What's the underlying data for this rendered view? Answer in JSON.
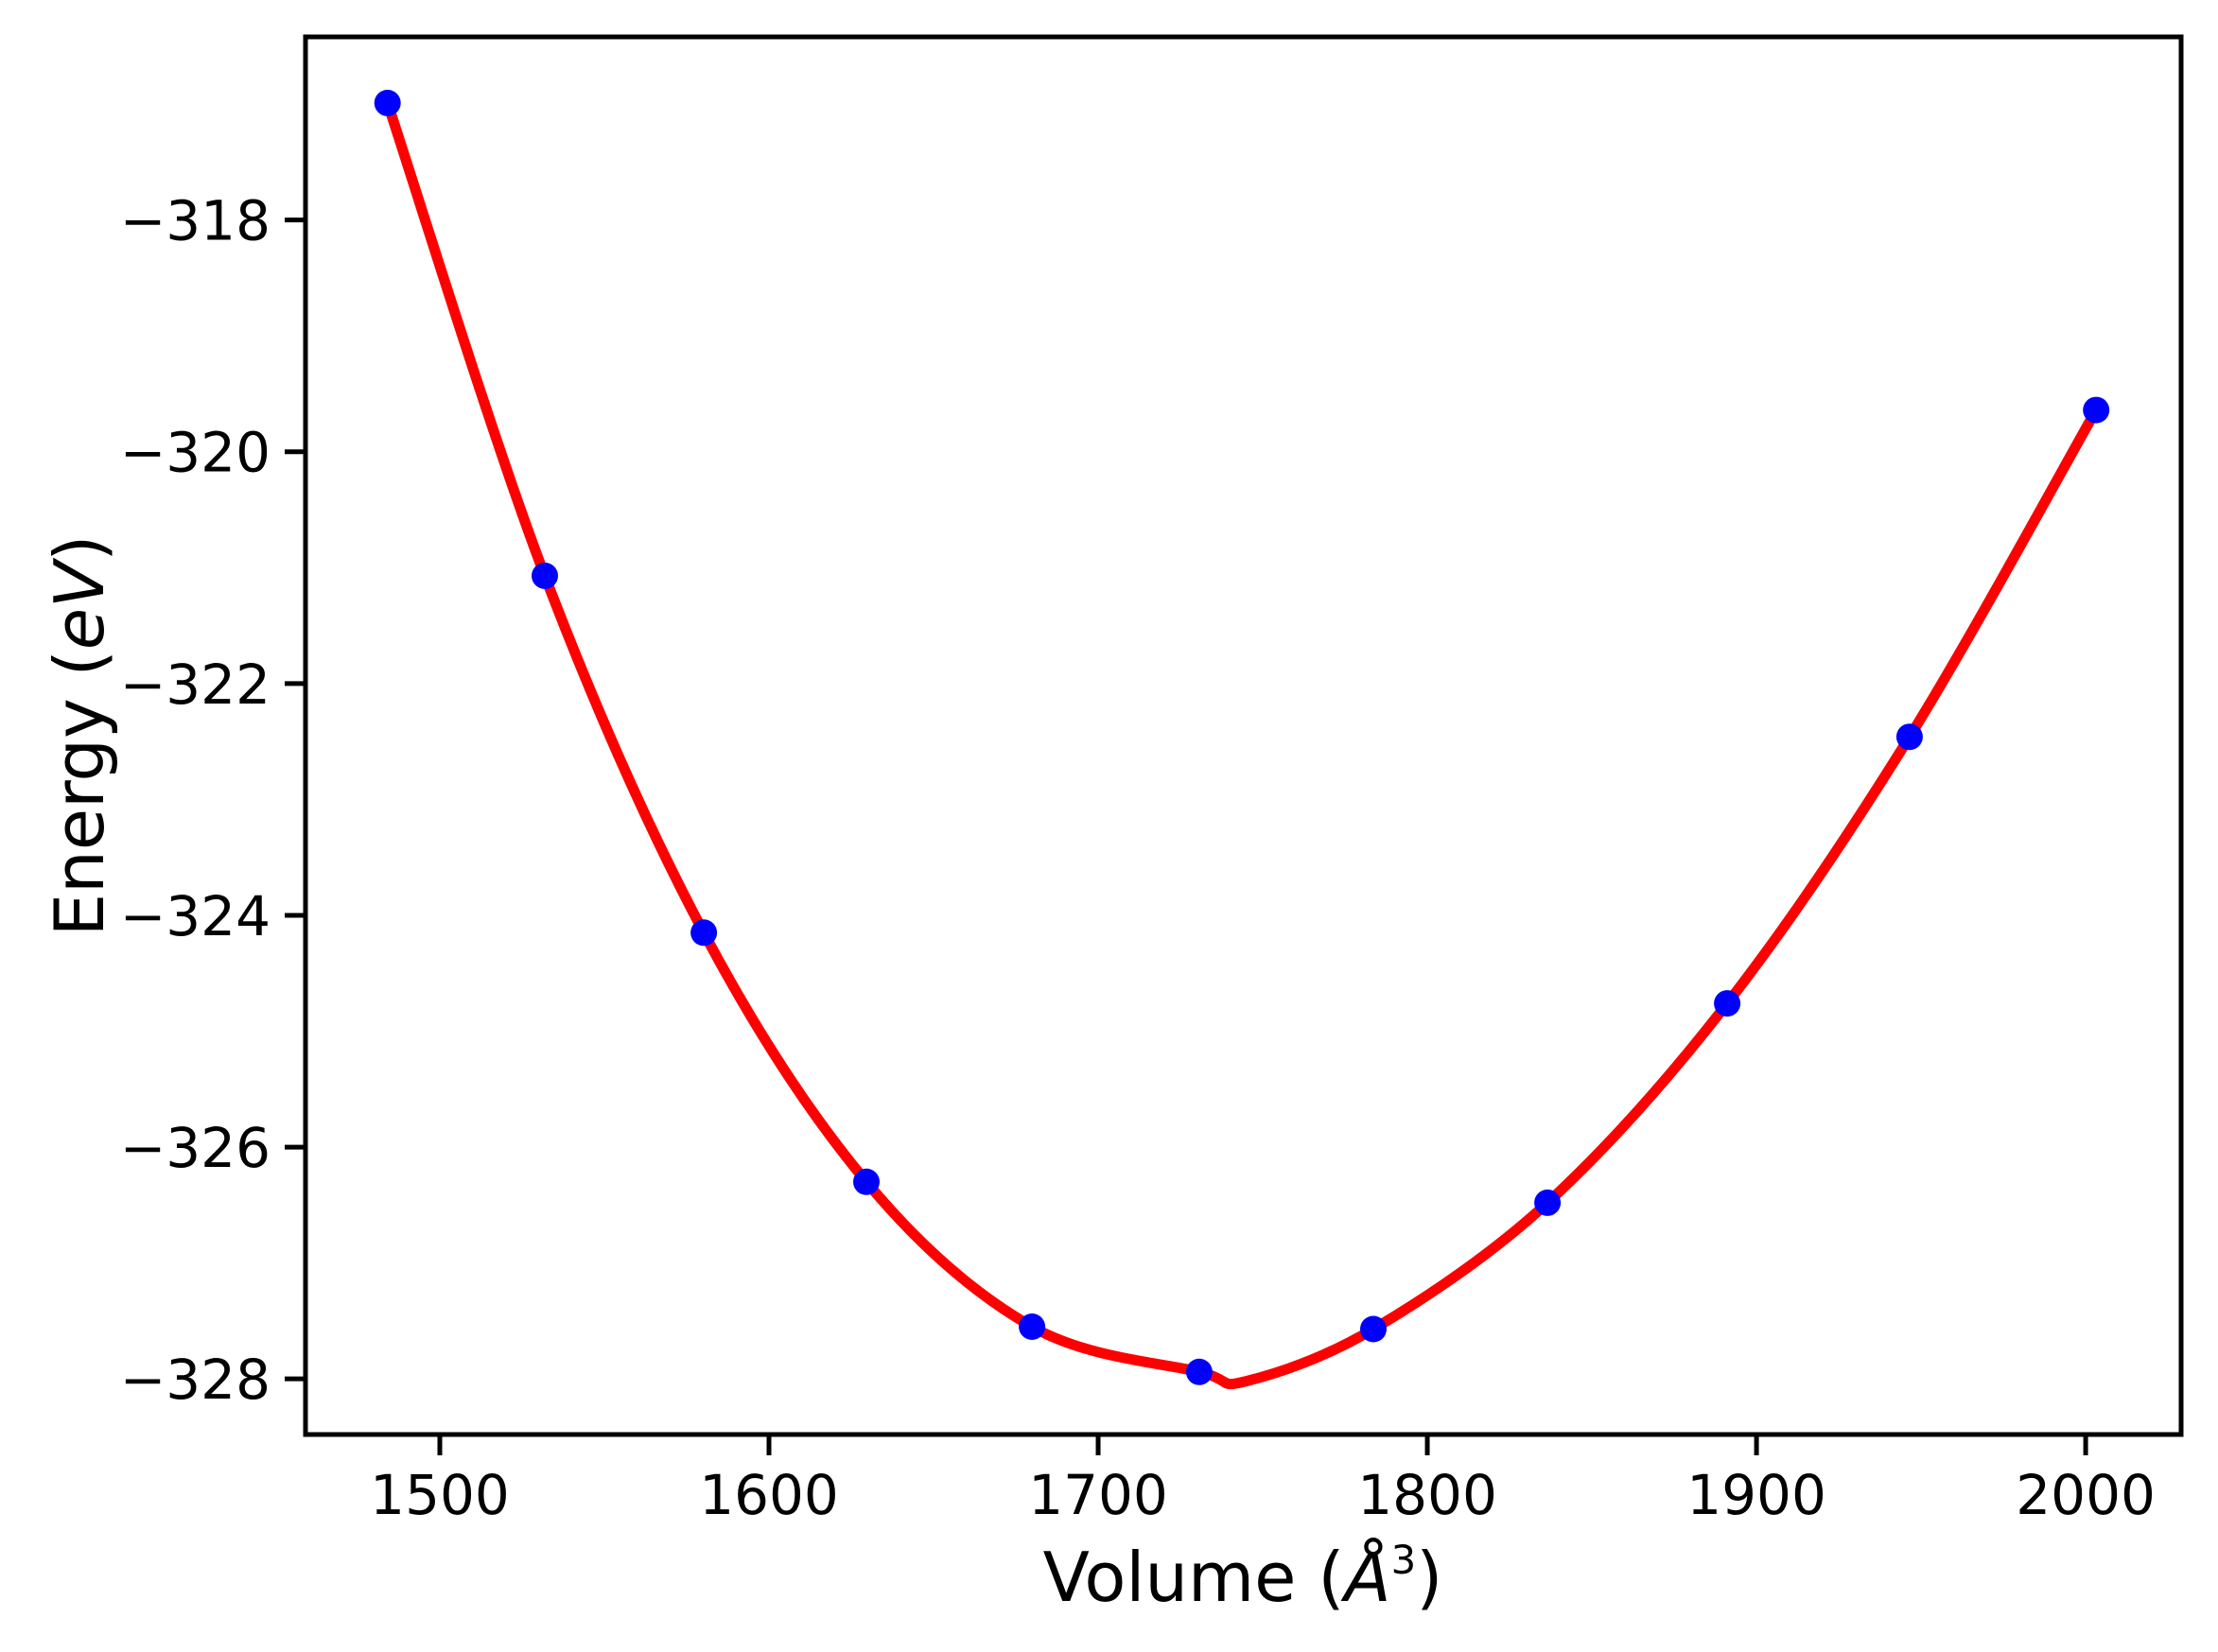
{
  "chart_data": {
    "type": "scatter",
    "title": "",
    "xlabel": {
      "prefix": "Volume (",
      "symbol": "Å",
      "superscript": "3",
      "suffix": ")",
      "plain": "Volume (Å³)"
    },
    "ylabel": {
      "prefix": "Energy (",
      "italic": "eV",
      "suffix": ")",
      "plain": "Energy (eV)"
    },
    "x": [
      1484.1,
      1531.9,
      1580.2,
      1629.6,
      1679.9,
      1730.7,
      1783.6,
      1836.5,
      1891.1,
      1946.5,
      2003.2
    ],
    "y": [
      -316.99,
      -321.07,
      -324.15,
      -326.3,
      -327.55,
      -327.94,
      -327.57,
      -326.48,
      -324.76,
      -322.46,
      -319.64
    ],
    "series": [
      {
        "name": "calculated points",
        "style": "blue circle markers"
      },
      {
        "name": "equation-of-state fit",
        "style": "red solid curve"
      }
    ],
    "fit_minimum": {
      "x": 1745,
      "y": -328.02
    },
    "xticks": {
      "values": [
        1500,
        1600,
        1700,
        1800,
        1900,
        2000
      ],
      "labels": [
        "1500",
        "1600",
        "1700",
        "1800",
        "1900",
        "2000"
      ]
    },
    "yticks": {
      "values": [
        -318,
        -320,
        -322,
        -324,
        -326,
        -328
      ],
      "labels": [
        "−318",
        "−320",
        "−322",
        "−324",
        "−326",
        "−328"
      ]
    },
    "xlim": [
      1459.2,
      2029.0
    ],
    "ylim": [
      -328.48,
      -316.42
    ],
    "grid": false,
    "legend": null,
    "point_color": "#0000ff",
    "line_color": "#ff0000",
    "axis_color": "#000000",
    "background": "#ffffff"
  }
}
